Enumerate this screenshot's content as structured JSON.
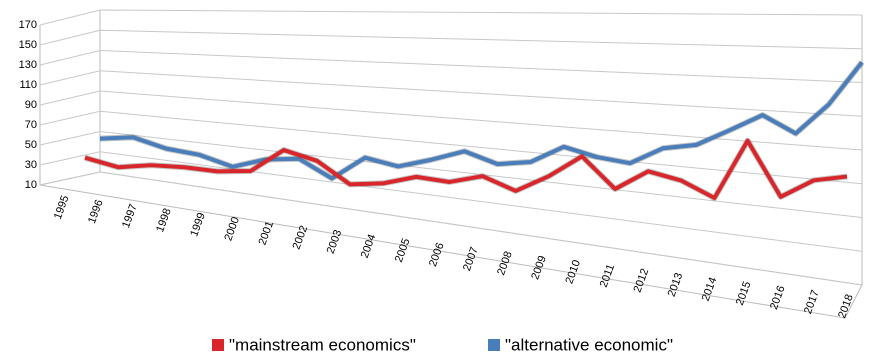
{
  "chart_data": {
    "type": "line",
    "categories": [
      "1995",
      "1996",
      "1997",
      "1998",
      "1999",
      "2000",
      "2001",
      "2002",
      "2003",
      "2004",
      "2005",
      "2006",
      "2007",
      "2008",
      "2009",
      "2010",
      "2011",
      "2012",
      "2013",
      "2014",
      "2015",
      "2016",
      "2017",
      "2018"
    ],
    "series": [
      {
        "name": "\"mainstream economics\"",
        "color": "#d9262b",
        "values": [
          32,
          27,
          33,
          35,
          35,
          39,
          60,
          54,
          38,
          42,
          50,
          49,
          56,
          48,
          61,
          77,
          57,
          71,
          67,
          58,
          96,
          63,
          75,
          79
        ]
      },
      {
        "name": "\"alternative economic\"",
        "color": "#4a7ebb",
        "values": [
          43,
          48,
          41,
          39,
          32,
          42,
          46,
          33,
          53,
          49,
          57,
          66,
          59,
          63,
          76,
          71,
          69,
          81,
          85,
          96,
          107,
          97,
          116,
          142
        ]
      }
    ],
    "ylim": [
      10,
      170
    ],
    "yticks": [
      10,
      30,
      50,
      70,
      90,
      110,
      130,
      150,
      170
    ],
    "grid": true,
    "legend": "bottom"
  }
}
